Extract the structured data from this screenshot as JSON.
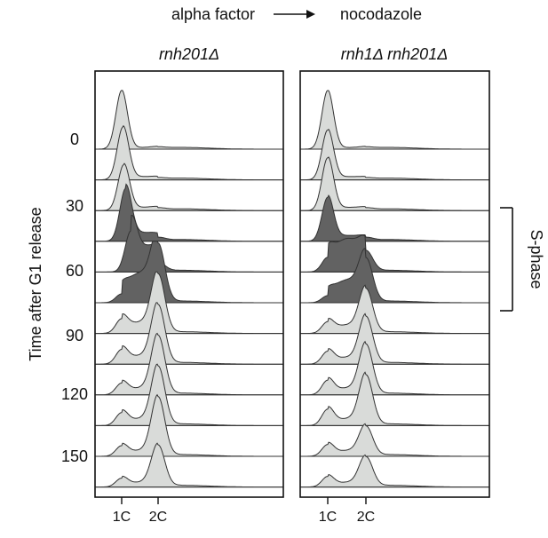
{
  "header": {
    "start_label": "alpha factor",
    "end_label": "nocodazole"
  },
  "chart_data": {
    "type": "area",
    "ylabel": "Time after G1 release",
    "xlabel": "",
    "x_tick_labels": [
      "1C",
      "2C"
    ],
    "time_tick_labels": [
      "0",
      "30",
      "60",
      "90",
      "120",
      "150"
    ],
    "bracket_label": "S-phase",
    "colors": {
      "light": "#d9dbd9",
      "dark": "#626262",
      "line": "#333333"
    },
    "panels": [
      {
        "title": "rnh201Δ",
        "traces": [
          {
            "shade": "light",
            "g1": 1.0,
            "g2": 0.02,
            "s": 0.02,
            "g1_pos": 1.0
          },
          {
            "shade": "light",
            "g1": 0.9,
            "g2": 0.02,
            "s": 0.05,
            "g1_pos": 1.05
          },
          {
            "shade": "light",
            "g1": 0.78,
            "g2": 0.03,
            "s": 0.05,
            "g1_pos": 1.08
          },
          {
            "shade": "dark",
            "g1": 0.9,
            "g2": 0.05,
            "s": 0.15,
            "g1_pos": 1.15
          },
          {
            "shade": "dark",
            "g1": 0.7,
            "g2": 0.15,
            "s": 0.45,
            "g1_pos": 1.35
          },
          {
            "shade": "dark",
            "g1": 0.15,
            "g2": 1.0,
            "s": 0.55,
            "g1_pos": 1.0
          },
          {
            "shade": "light",
            "g1": 0.25,
            "g2": 1.0,
            "s": 0.2,
            "g1_pos": 1.0
          },
          {
            "shade": "light",
            "g1": 0.25,
            "g2": 1.0,
            "s": 0.15,
            "g1_pos": 1.0
          },
          {
            "shade": "light",
            "g1": 0.2,
            "g2": 1.0,
            "s": 0.12,
            "g1_pos": 1.0
          },
          {
            "shade": "light",
            "g1": 0.22,
            "g2": 1.0,
            "s": 0.12,
            "g1_pos": 1.0
          },
          {
            "shade": "light",
            "g1": 0.18,
            "g2": 1.0,
            "s": 0.1,
            "g1_pos": 1.0
          },
          {
            "shade": "light",
            "g1": 0.15,
            "g2": 0.7,
            "s": 0.08,
            "g1_pos": 1.0
          }
        ]
      },
      {
        "title": "rnh1Δ rnh201Δ",
        "traces": [
          {
            "shade": "light",
            "g1": 1.0,
            "g2": 0.02,
            "s": 0.02,
            "g1_pos": 1.0
          },
          {
            "shade": "light",
            "g1": 0.85,
            "g2": 0.02,
            "s": 0.05,
            "g1_pos": 1.0
          },
          {
            "shade": "light",
            "g1": 0.9,
            "g2": 0.03,
            "s": 0.05,
            "g1_pos": 1.0
          },
          {
            "shade": "dark",
            "g1": 0.75,
            "g2": 0.05,
            "s": 0.1,
            "g1_pos": 1.0
          },
          {
            "shade": "dark",
            "g1": 0.25,
            "g2": 0.35,
            "s": 0.62,
            "g1_pos": 1.0
          },
          {
            "shade": "dark",
            "g1": 0.12,
            "g2": 0.75,
            "s": 0.42,
            "g1_pos": 1.0
          },
          {
            "shade": "light",
            "g1": 0.2,
            "g2": 0.75,
            "s": 0.15,
            "g1_pos": 1.0
          },
          {
            "shade": "light",
            "g1": 0.22,
            "g2": 0.8,
            "s": 0.12,
            "g1_pos": 1.0
          },
          {
            "shade": "light",
            "g1": 0.25,
            "g2": 0.85,
            "s": 0.12,
            "g1_pos": 1.0
          },
          {
            "shade": "light",
            "g1": 0.28,
            "g2": 0.85,
            "s": 0.12,
            "g1_pos": 1.0
          },
          {
            "shade": "light",
            "g1": 0.2,
            "g2": 0.5,
            "s": 0.1,
            "g1_pos": 1.0
          },
          {
            "shade": "light",
            "g1": 0.18,
            "g2": 0.5,
            "s": 0.08,
            "g1_pos": 1.0
          }
        ]
      }
    ]
  }
}
